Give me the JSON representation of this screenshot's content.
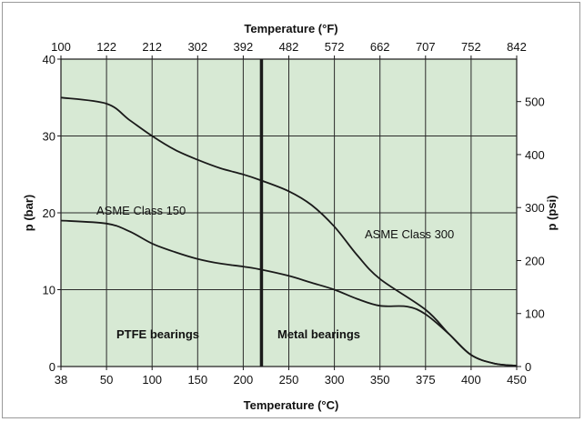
{
  "chart_data": {
    "type": "line",
    "title": "",
    "xlabel": "Temperature (°C)",
    "x2label": "Temperature (°F)",
    "ylabel": "p (bar)",
    "y2label": "p (psi)",
    "x_ticks": [
      "38",
      "50",
      "100",
      "150",
      "200",
      "250",
      "300",
      "350",
      "375",
      "400",
      "450"
    ],
    "x2_ticks": [
      "100",
      "122",
      "212",
      "302",
      "392",
      "482",
      "572",
      "662",
      "707",
      "752",
      "842"
    ],
    "ylim": [
      0,
      40
    ],
    "y_ticks": [
      "0",
      "10",
      "20",
      "30",
      "40"
    ],
    "y2_ticks": [
      "0",
      "100",
      "200",
      "300",
      "400",
      "500"
    ],
    "grid": true,
    "colors": {
      "plot_background": "#d7e9d4",
      "line": "#1a1a1a",
      "grid": "#2a2a2a"
    },
    "divider": {
      "x": 220
    },
    "series": [
      {
        "name": "ASME Class 300",
        "points": [
          [
            38,
            35
          ],
          [
            50,
            34.2
          ],
          [
            75,
            32.1
          ],
          [
            100,
            30
          ],
          [
            125,
            28.2
          ],
          [
            150,
            26.9
          ],
          [
            175,
            25.8
          ],
          [
            200,
            25
          ],
          [
            220,
            24.2
          ],
          [
            250,
            22.8
          ],
          [
            275,
            21
          ],
          [
            300,
            18.2
          ],
          [
            325,
            14.5
          ],
          [
            350,
            11.4
          ],
          [
            375,
            7.4
          ],
          [
            388,
            4.2
          ],
          [
            400,
            1.5
          ],
          [
            425,
            0.4
          ],
          [
            450,
            0.1
          ]
        ]
      },
      {
        "name": "ASME Class 150",
        "points": [
          [
            38,
            19
          ],
          [
            50,
            18.6
          ],
          [
            75,
            17.6
          ],
          [
            100,
            16
          ],
          [
            125,
            14.9
          ],
          [
            150,
            14
          ],
          [
            175,
            13.4
          ],
          [
            200,
            13
          ],
          [
            220,
            12.6
          ],
          [
            250,
            11.8
          ],
          [
            275,
            10.9
          ],
          [
            300,
            10
          ],
          [
            325,
            8.8
          ],
          [
            350,
            7.9
          ],
          [
            365,
            7.8
          ],
          [
            375,
            6.8
          ],
          [
            388,
            4.2
          ],
          [
            400,
            1.5
          ],
          [
            425,
            0.4
          ],
          [
            450,
            0.1
          ]
        ]
      }
    ],
    "annotations": {
      "class150": "ASME Class 150",
      "class300": "ASME Class 300",
      "ptfe": "PTFE bearings",
      "metal": "Metal bearings"
    }
  }
}
